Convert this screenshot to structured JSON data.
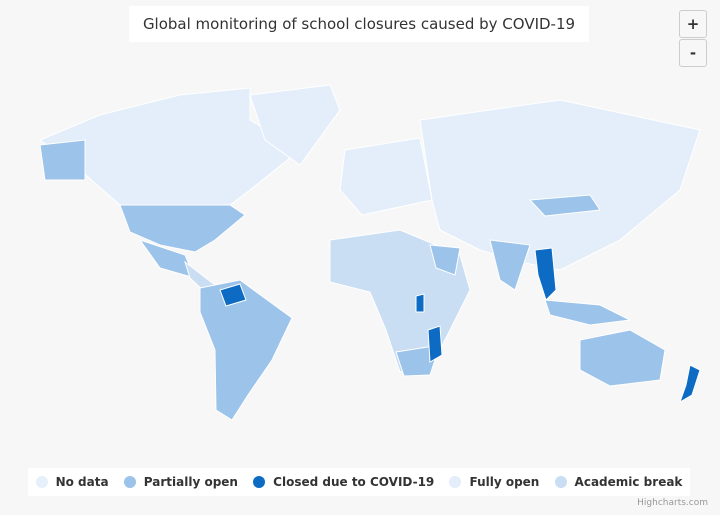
{
  "title": "Global monitoring of school closures caused by COVID-19",
  "zoom_buttons": [
    "+",
    "-"
  ],
  "legend": [
    {
      "name": "No data",
      "color": "#e6f0fa"
    },
    {
      "name": "Partially open",
      "color": "#9cc3ea"
    },
    {
      "name": "Closed due to COVID-19",
      "color": "#0d6bc4"
    },
    {
      "name": "Fully open",
      "color": "#e3eefa"
    },
    {
      "name": "Academic break",
      "color": "#c9ddf3"
    }
  ],
  "credit": "Highcharts.com"
}
